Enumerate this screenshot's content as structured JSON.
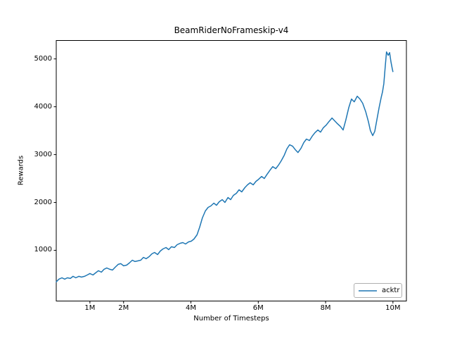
{
  "chart_data": {
    "type": "line",
    "title": "BeamRiderNoFrameskip-v4",
    "xlabel": "Number of Timesteps",
    "ylabel": "Rewards",
    "grid": false,
    "legend_position": "lower right",
    "legend_border_color": "#b0b0b0",
    "axis_color": "#000000",
    "x_unit": "timesteps (millions)",
    "xlim": [
      0,
      10.4
    ],
    "ylim": [
      -60,
      5385
    ],
    "xticks": [
      {
        "value": 1,
        "label": "1M"
      },
      {
        "value": 2,
        "label": "2M"
      },
      {
        "value": 4,
        "label": "4M"
      },
      {
        "value": 6,
        "label": "6M"
      },
      {
        "value": 8,
        "label": "8M"
      },
      {
        "value": 10,
        "label": "10M"
      }
    ],
    "yticks": [
      {
        "value": 1000,
        "label": "1000"
      },
      {
        "value": 2000,
        "label": "2000"
      },
      {
        "value": 3000,
        "label": "3000"
      },
      {
        "value": 4000,
        "label": "4000"
      },
      {
        "value": 5000,
        "label": "5000"
      }
    ],
    "series": [
      {
        "name": "acktr",
        "color": "#1f77b4",
        "x": [
          0.0,
          0.08,
          0.17,
          0.25,
          0.33,
          0.42,
          0.5,
          0.58,
          0.67,
          0.75,
          0.84,
          0.92,
          1.0,
          1.09,
          1.17,
          1.25,
          1.34,
          1.42,
          1.5,
          1.59,
          1.67,
          1.75,
          1.84,
          1.92,
          2.0,
          2.09,
          2.17,
          2.26,
          2.34,
          2.42,
          2.51,
          2.59,
          2.67,
          2.76,
          2.84,
          2.92,
          3.01,
          3.09,
          3.17,
          3.26,
          3.34,
          3.42,
          3.51,
          3.59,
          3.68,
          3.76,
          3.84,
          3.93,
          4.01,
          4.09,
          4.18,
          4.26,
          4.34,
          4.43,
          4.51,
          4.59,
          4.68,
          4.76,
          4.84,
          4.93,
          5.01,
          5.1,
          5.18,
          5.26,
          5.35,
          5.43,
          5.51,
          5.6,
          5.68,
          5.76,
          5.85,
          5.93,
          6.01,
          6.1,
          6.18,
          6.26,
          6.35,
          6.43,
          6.52,
          6.6,
          6.68,
          6.77,
          6.85,
          6.93,
          7.02,
          7.1,
          7.18,
          7.27,
          7.35,
          7.43,
          7.52,
          7.6,
          7.68,
          7.77,
          7.85,
          7.93,
          8.02,
          8.1,
          8.19,
          8.27,
          8.35,
          8.44,
          8.52,
          8.6,
          8.69,
          8.77,
          8.85,
          8.94,
          9.02,
          9.1,
          9.19,
          9.27,
          9.33,
          9.4,
          9.46,
          9.52,
          9.59,
          9.65,
          9.69,
          9.73,
          9.77,
          9.81,
          9.86,
          9.9,
          9.94,
          9.98,
          10.0
        ],
        "y": [
          340,
          397,
          426,
          397,
          426,
          412,
          456,
          426,
          456,
          441,
          456,
          485,
          515,
          485,
          529,
          574,
          544,
          603,
          632,
          603,
          588,
          647,
          706,
          721,
          676,
          691,
          735,
          794,
          765,
          779,
          794,
          853,
          824,
          868,
          926,
          956,
          912,
          985,
          1029,
          1059,
          1015,
          1074,
          1059,
          1118,
          1147,
          1162,
          1132,
          1176,
          1191,
          1235,
          1324,
          1485,
          1676,
          1824,
          1897,
          1926,
          1985,
          1941,
          2015,
          2059,
          2000,
          2103,
          2059,
          2147,
          2191,
          2265,
          2221,
          2309,
          2368,
          2412,
          2368,
          2441,
          2485,
          2544,
          2500,
          2588,
          2676,
          2750,
          2706,
          2779,
          2868,
          2985,
          3118,
          3206,
          3176,
          3103,
          3044,
          3132,
          3250,
          3324,
          3294,
          3382,
          3456,
          3515,
          3471,
          3559,
          3618,
          3691,
          3765,
          3706,
          3647,
          3588,
          3515,
          3721,
          3985,
          4162,
          4103,
          4221,
          4162,
          4074,
          3897,
          3691,
          3500,
          3397,
          3485,
          3721,
          3985,
          4191,
          4309,
          4485,
          4824,
          5147,
          5074,
          5132,
          4941,
          4794,
          4735
        ]
      }
    ]
  }
}
